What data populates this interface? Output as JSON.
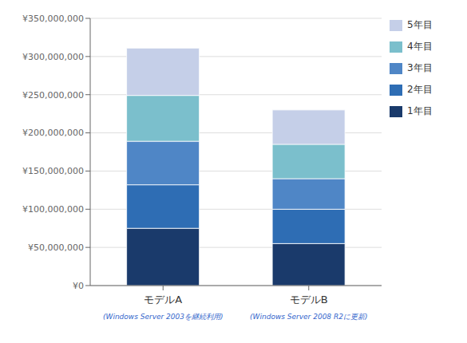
{
  "chart_data": {
    "type": "bar",
    "stacked": true,
    "categories": [
      "モデルA",
      "モデルB"
    ],
    "series": [
      {
        "name": "1年目",
        "values": [
          75000000,
          55000000
        ],
        "color": "#1a3a6b"
      },
      {
        "name": "2年目",
        "values": [
          57000000,
          45000000
        ],
        "color": "#2e6db4"
      },
      {
        "name": "3年目",
        "values": [
          57000000,
          40000000
        ],
        "color": "#4f86c6"
      },
      {
        "name": "4年目",
        "values": [
          60000000,
          45000000
        ],
        "color": "#7bbfcc"
      },
      {
        "name": "5年目",
        "values": [
          62000000,
          45000000
        ],
        "color": "#c5cfe8"
      }
    ],
    "annotations": [
      {
        "category": "モデルA",
        "text": "(Windows Server 2003を継続利用)",
        "color": "#3366cc"
      },
      {
        "category": "モデルB",
        "text": "(Windows Server 2008 R2に更新)",
        "color": "#3366cc"
      }
    ],
    "ylim": [
      0,
      350000000
    ],
    "yticks": [
      {
        "value": 0,
        "label": "¥0"
      },
      {
        "value": 50000000,
        "label": "¥50,000,000"
      },
      {
        "value": 100000000,
        "label": "¥100,000,000"
      },
      {
        "value": 150000000,
        "label": "¥150,000,000"
      },
      {
        "value": 200000000,
        "label": "¥200,000,000"
      },
      {
        "value": 250000000,
        "label": "¥250,000,000"
      },
      {
        "value": 300000000,
        "label": "¥300,000,000"
      },
      {
        "value": 350000000,
        "label": "¥350,000,000"
      }
    ],
    "grid": true,
    "legend": "right"
  }
}
